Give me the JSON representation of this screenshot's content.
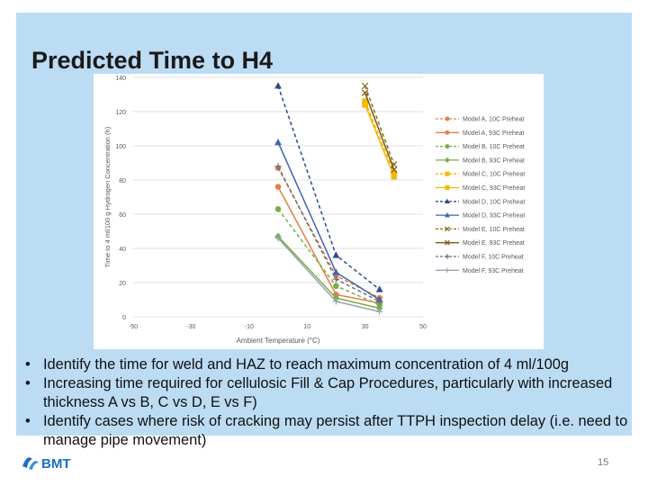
{
  "title": "Predicted Time to H4",
  "bullets": [
    "Identify the time for weld and HAZ to reach maximum concentration of 4 ml/100g",
    "Increasing time required for cellulosic Fill & Cap Procedures, particularly with increased thickness A vs B, C vs D, E vs F)",
    "Identify cases where risk of cracking may persist after TTPH inspection delay (i.e. need to manage pipe movement)"
  ],
  "bullet_symbol": "•",
  "page_number": "15",
  "logo_text": "BMT",
  "colors": {
    "slide_background": "#bcdcf4",
    "logo": "#1b6fc0"
  },
  "chart_data": {
    "type": "line",
    "title": "",
    "xlabel": "Ambient Temperature (°C)",
    "ylabel": "Time to 4 ml/100 g Hydrogen Concentration (h)",
    "xlim": [
      -50,
      50
    ],
    "ylim": [
      0,
      140
    ],
    "xticks": [
      -50,
      -30,
      -10,
      10,
      30,
      50
    ],
    "yticks": [
      0,
      20,
      40,
      60,
      80,
      100,
      120,
      140
    ],
    "grid": "horizontal",
    "legend_position": "right",
    "series": [
      {
        "name": "Model A, 10C Preheat",
        "color": "#e87c46",
        "dash": "dashed",
        "marker": "circle",
        "x": [
          0,
          20,
          35
        ],
        "y": [
          87,
          24,
          11
        ]
      },
      {
        "name": "Model A, 93C Preheat",
        "color": "#e87c46",
        "dash": "solid",
        "marker": "circle",
        "x": [
          0,
          20,
          35
        ],
        "y": [
          76,
          13,
          8
        ]
      },
      {
        "name": "Model B, 10C Preheat",
        "color": "#78ad48",
        "dash": "dashed",
        "marker": "circle",
        "x": [
          0,
          20,
          35
        ],
        "y": [
          63,
          18,
          7
        ]
      },
      {
        "name": "Model B, 93C Preheat",
        "color": "#78ad48",
        "dash": "solid",
        "marker": "diamond",
        "x": [
          0,
          20,
          35
        ],
        "y": [
          47,
          11,
          5
        ]
      },
      {
        "name": "Model C, 10C Preheat",
        "color": "#f6b800",
        "dash": "dashed",
        "marker": "square",
        "x": [
          30,
          40
        ],
        "y": [
          126,
          84
        ]
      },
      {
        "name": "Model C, 93C Preheat",
        "color": "#f6b800",
        "dash": "solid",
        "marker": "square",
        "x": [
          30,
          40
        ],
        "y": [
          124,
          82
        ]
      },
      {
        "name": "Model D, 10C Preheat",
        "color": "#2d4a8e",
        "dash": "dashed",
        "marker": "triangle",
        "x": [
          0,
          20,
          35
        ],
        "y": [
          135,
          36,
          16
        ]
      },
      {
        "name": "Model D, 93C Preheat",
        "color": "#3f63b5",
        "dash": "solid",
        "marker": "triangle",
        "x": [
          0,
          20,
          35
        ],
        "y": [
          102,
          26,
          10
        ]
      },
      {
        "name": "Model E, 10C Preheat",
        "color": "#8c6d1f",
        "dash": "dashed",
        "marker": "x",
        "x": [
          30,
          40
        ],
        "y": [
          135,
          89
        ]
      },
      {
        "name": "Model E, 93C Preheat",
        "color": "#7a5a10",
        "dash": "solid",
        "marker": "x",
        "x": [
          30,
          40
        ],
        "y": [
          131,
          86
        ]
      },
      {
        "name": "Model F, 10C Preheat",
        "color": "#607080",
        "dash": "dashed",
        "marker": "plus",
        "x": [
          0,
          20,
          35
        ],
        "y": [
          88,
          22,
          9
        ]
      },
      {
        "name": "Model F, 93C Preheat",
        "color": "#9aa3ad",
        "dash": "solid",
        "marker": "plus",
        "x": [
          0,
          20,
          35
        ],
        "y": [
          46,
          9,
          3
        ]
      }
    ]
  }
}
